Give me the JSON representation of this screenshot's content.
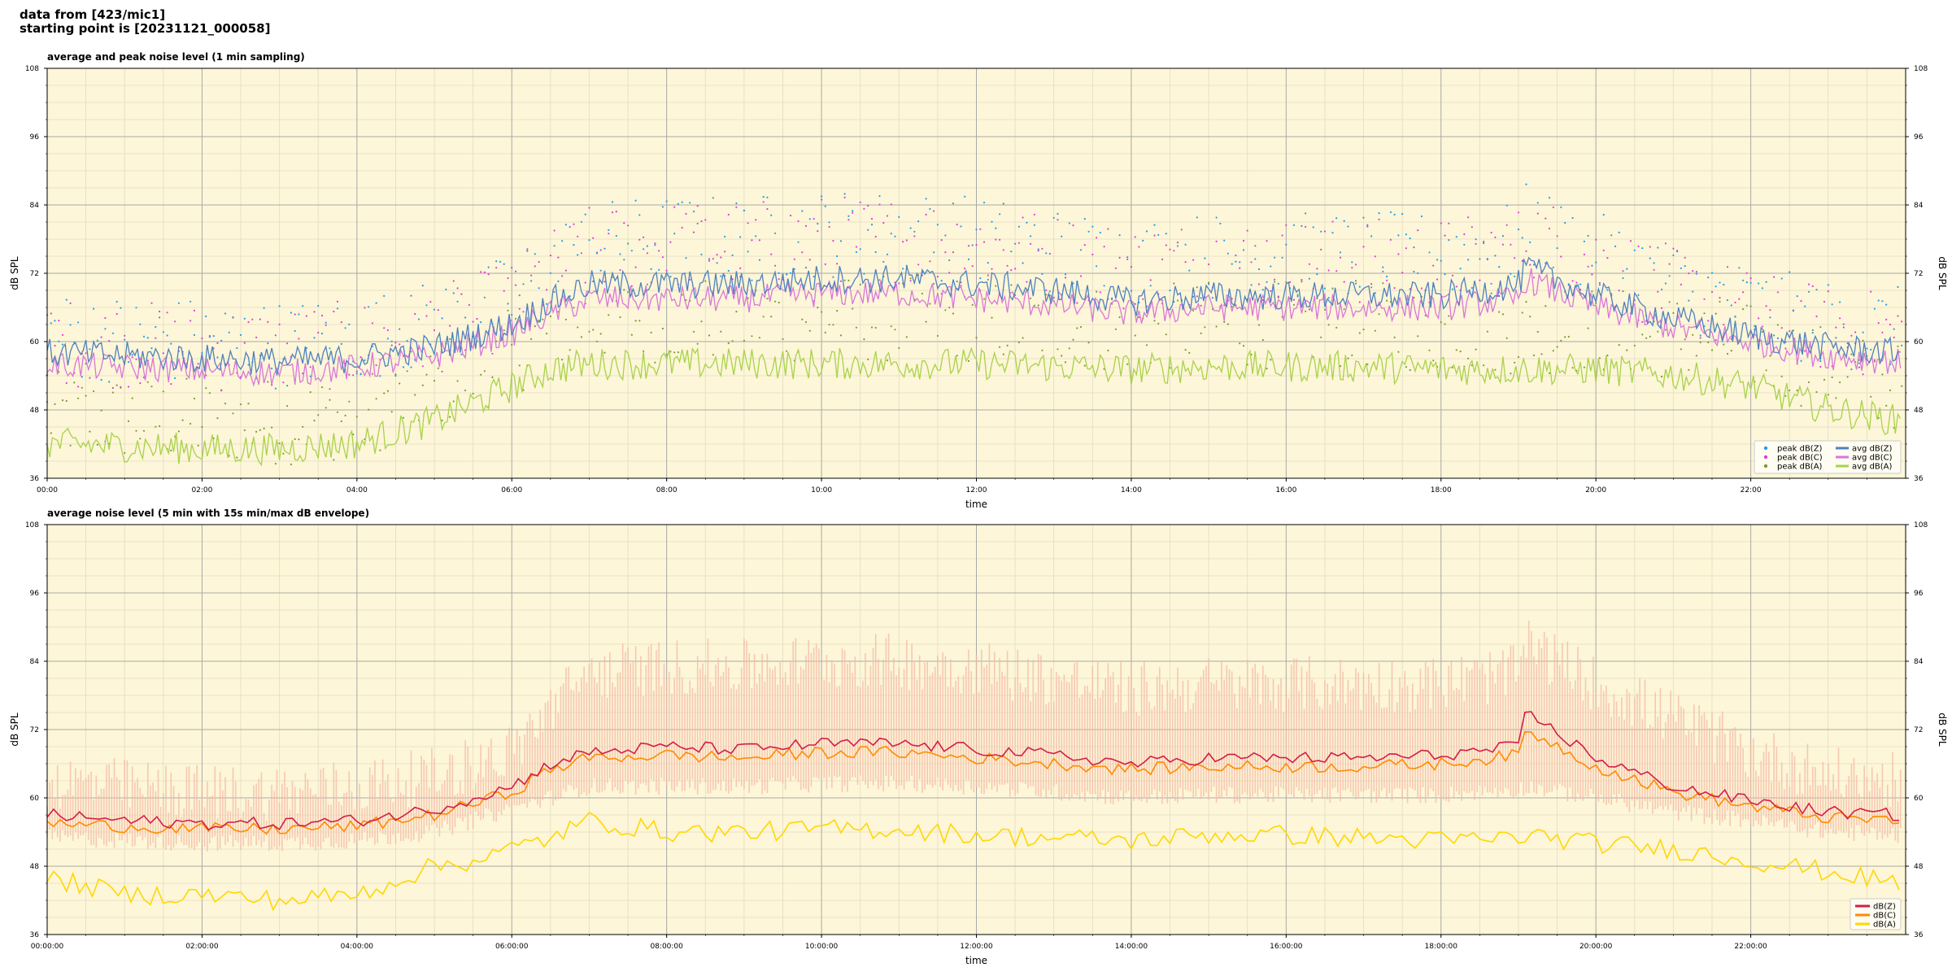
{
  "header": {
    "line1": "data from [423/mic1]",
    "line2": "starting point is [20231121_000058]"
  },
  "colors": {
    "plot_bg": "#fdf6d8",
    "grid_major": "#a9a9a9",
    "grid_minor": "#e2dcc4",
    "peak_z": "#1f9fe8",
    "peak_c": "#e33bd8",
    "peak_a": "#7a9a3a",
    "avg_z": "#4f81bd",
    "avg_c": "#d977d9",
    "avg_a": "#a8d24a",
    "env": "#f4b9a6",
    "line_z": "#d21f46",
    "line_c": "#ff8c00",
    "line_a": "#ffd700"
  },
  "chart_data": [
    {
      "type": "line",
      "title": "average and peak noise level (1 min sampling)",
      "xlabel": "time",
      "ylabel": "dB SPL",
      "xlim": [
        "00:00",
        "24:00"
      ],
      "ylim": [
        36,
        108
      ],
      "yticks": [
        36,
        48,
        60,
        72,
        84,
        96,
        108
      ],
      "xtick_labels": [
        "00:00",
        "02:00",
        "04:00",
        "06:00",
        "08:00",
        "10:00",
        "12:00",
        "14:00",
        "16:00",
        "18:00",
        "20:00",
        "22:00"
      ],
      "grid": true,
      "legend_position": "bottom-right",
      "x_hours": [
        0,
        1,
        2,
        3,
        4,
        5,
        5.5,
        6,
        6.5,
        7,
        8,
        9,
        10,
        11,
        12,
        13,
        14,
        15,
        16,
        17,
        18,
        19,
        19.1,
        20,
        21,
        22,
        23,
        23.9
      ],
      "series": [
        {
          "name": "avg dB(Z)",
          "kind": "line",
          "values": [
            57,
            56.5,
            56,
            55.5,
            56,
            58,
            60,
            62,
            66,
            69,
            69,
            69,
            70,
            70,
            69,
            68,
            66,
            67,
            67,
            67,
            67,
            69,
            72,
            67,
            63,
            60,
            58,
            57
          ]
        },
        {
          "name": "avg dB(C)",
          "kind": "line",
          "values": [
            55,
            54.5,
            54,
            53.5,
            54.5,
            56.5,
            58.5,
            60.5,
            64,
            66.5,
            66.5,
            66.5,
            67.5,
            67.5,
            66.5,
            65.5,
            64,
            65,
            65,
            65,
            65,
            66.5,
            70,
            65,
            61.5,
            59,
            56.5,
            55.5
          ]
        },
        {
          "name": "avg dB(A)",
          "kind": "line",
          "values": [
            41,
            40.5,
            40,
            40,
            41,
            45,
            48,
            51,
            54,
            55,
            55,
            55,
            55,
            55,
            55,
            54.5,
            54,
            54.5,
            54.5,
            54.5,
            54,
            54,
            54,
            54,
            53,
            51,
            47,
            45
          ]
        },
        {
          "name": "peak dB(Z)",
          "kind": "scatter",
          "values": [
            61,
            60.5,
            60,
            59.5,
            60.5,
            63,
            65,
            68,
            73,
            77,
            78,
            78,
            79,
            79,
            78,
            76,
            74,
            75,
            75,
            75,
            75,
            77,
            80,
            75,
            70,
            66,
            63,
            62
          ]
        },
        {
          "name": "peak dB(C)",
          "kind": "scatter",
          "values": [
            60,
            59.5,
            59,
            58.5,
            59.5,
            62,
            64,
            67,
            72,
            76,
            77,
            77,
            78,
            78,
            77,
            75,
            73,
            74,
            74,
            74,
            74,
            76,
            79,
            74,
            69,
            65,
            62,
            61
          ]
        },
        {
          "name": "peak dB(A)",
          "kind": "scatter",
          "values": [
            47,
            46.5,
            46,
            46,
            47,
            52,
            55,
            58,
            62,
            64,
            64,
            64,
            64,
            64,
            64,
            63,
            62,
            63,
            63,
            63,
            62,
            62,
            62,
            62,
            61,
            59,
            55,
            52
          ]
        }
      ]
    },
    {
      "type": "line",
      "title": "average noise level (5 min with 15s min/max dB envelope)",
      "xlabel": "time",
      "ylabel": "dB SPL",
      "xlim": [
        "00:00:00",
        "24:00:00"
      ],
      "ylim": [
        36,
        108
      ],
      "yticks": [
        36,
        48,
        60,
        72,
        84,
        96,
        108
      ],
      "xtick_labels": [
        "00:00:00",
        "02:00:00",
        "04:00:00",
        "06:00:00",
        "08:00:00",
        "10:00:00",
        "12:00:00",
        "14:00:00",
        "16:00:00",
        "18:00:00",
        "20:00:00",
        "22:00:00"
      ],
      "grid": true,
      "legend_position": "bottom-right",
      "x_hours": [
        0,
        1,
        2,
        3,
        4,
        5,
        5.5,
        6,
        6.5,
        7,
        8,
        9,
        10,
        11,
        12,
        13,
        14,
        15,
        16,
        17,
        18,
        19,
        19.1,
        20,
        21,
        22,
        23,
        23.9
      ],
      "series": [
        {
          "name": "dB(Z)",
          "kind": "line",
          "values": [
            57,
            56,
            55.5,
            55.5,
            56,
            58,
            60,
            62,
            66,
            68,
            69,
            68.5,
            69.5,
            69.5,
            68.5,
            67.5,
            66,
            67,
            67,
            67,
            67.5,
            69,
            75,
            67,
            62,
            59.5,
            57.5,
            57
          ]
        },
        {
          "name": "dB(C)",
          "kind": "line",
          "values": [
            55.5,
            55,
            54.5,
            54.5,
            55,
            57,
            59,
            61,
            65,
            67,
            67.5,
            67,
            68,
            68,
            67,
            66,
            65,
            65.5,
            65.5,
            65.5,
            66,
            67.5,
            72,
            65.5,
            61,
            58.5,
            56.5,
            56
          ]
        },
        {
          "name": "dB(A)",
          "kind": "line",
          "values": [
            46,
            43,
            43,
            42,
            43,
            48,
            49,
            51,
            53,
            56,
            54,
            54,
            54.5,
            54.5,
            53.5,
            53,
            52.5,
            53.5,
            53.5,
            53,
            52.5,
            53,
            53.5,
            52,
            51,
            49,
            47,
            45
          ]
        },
        {
          "name": "envelope max",
          "kind": "band",
          "values": [
            63,
            62,
            61,
            61,
            62,
            64,
            66,
            68,
            76,
            82,
            83,
            83,
            84,
            84,
            83,
            81,
            79,
            80,
            80,
            80,
            80,
            82,
            87,
            80,
            74,
            68,
            64,
            63
          ]
        },
        {
          "name": "envelope min",
          "kind": "band",
          "values": [
            53,
            52.5,
            52,
            52,
            52.5,
            54,
            56,
            58,
            60,
            62,
            62,
            62,
            62.5,
            62.5,
            62,
            61,
            60,
            60.5,
            60.5,
            60.5,
            60.5,
            61.5,
            62,
            60,
            57.5,
            56,
            54,
            53.5
          ]
        }
      ]
    }
  ]
}
